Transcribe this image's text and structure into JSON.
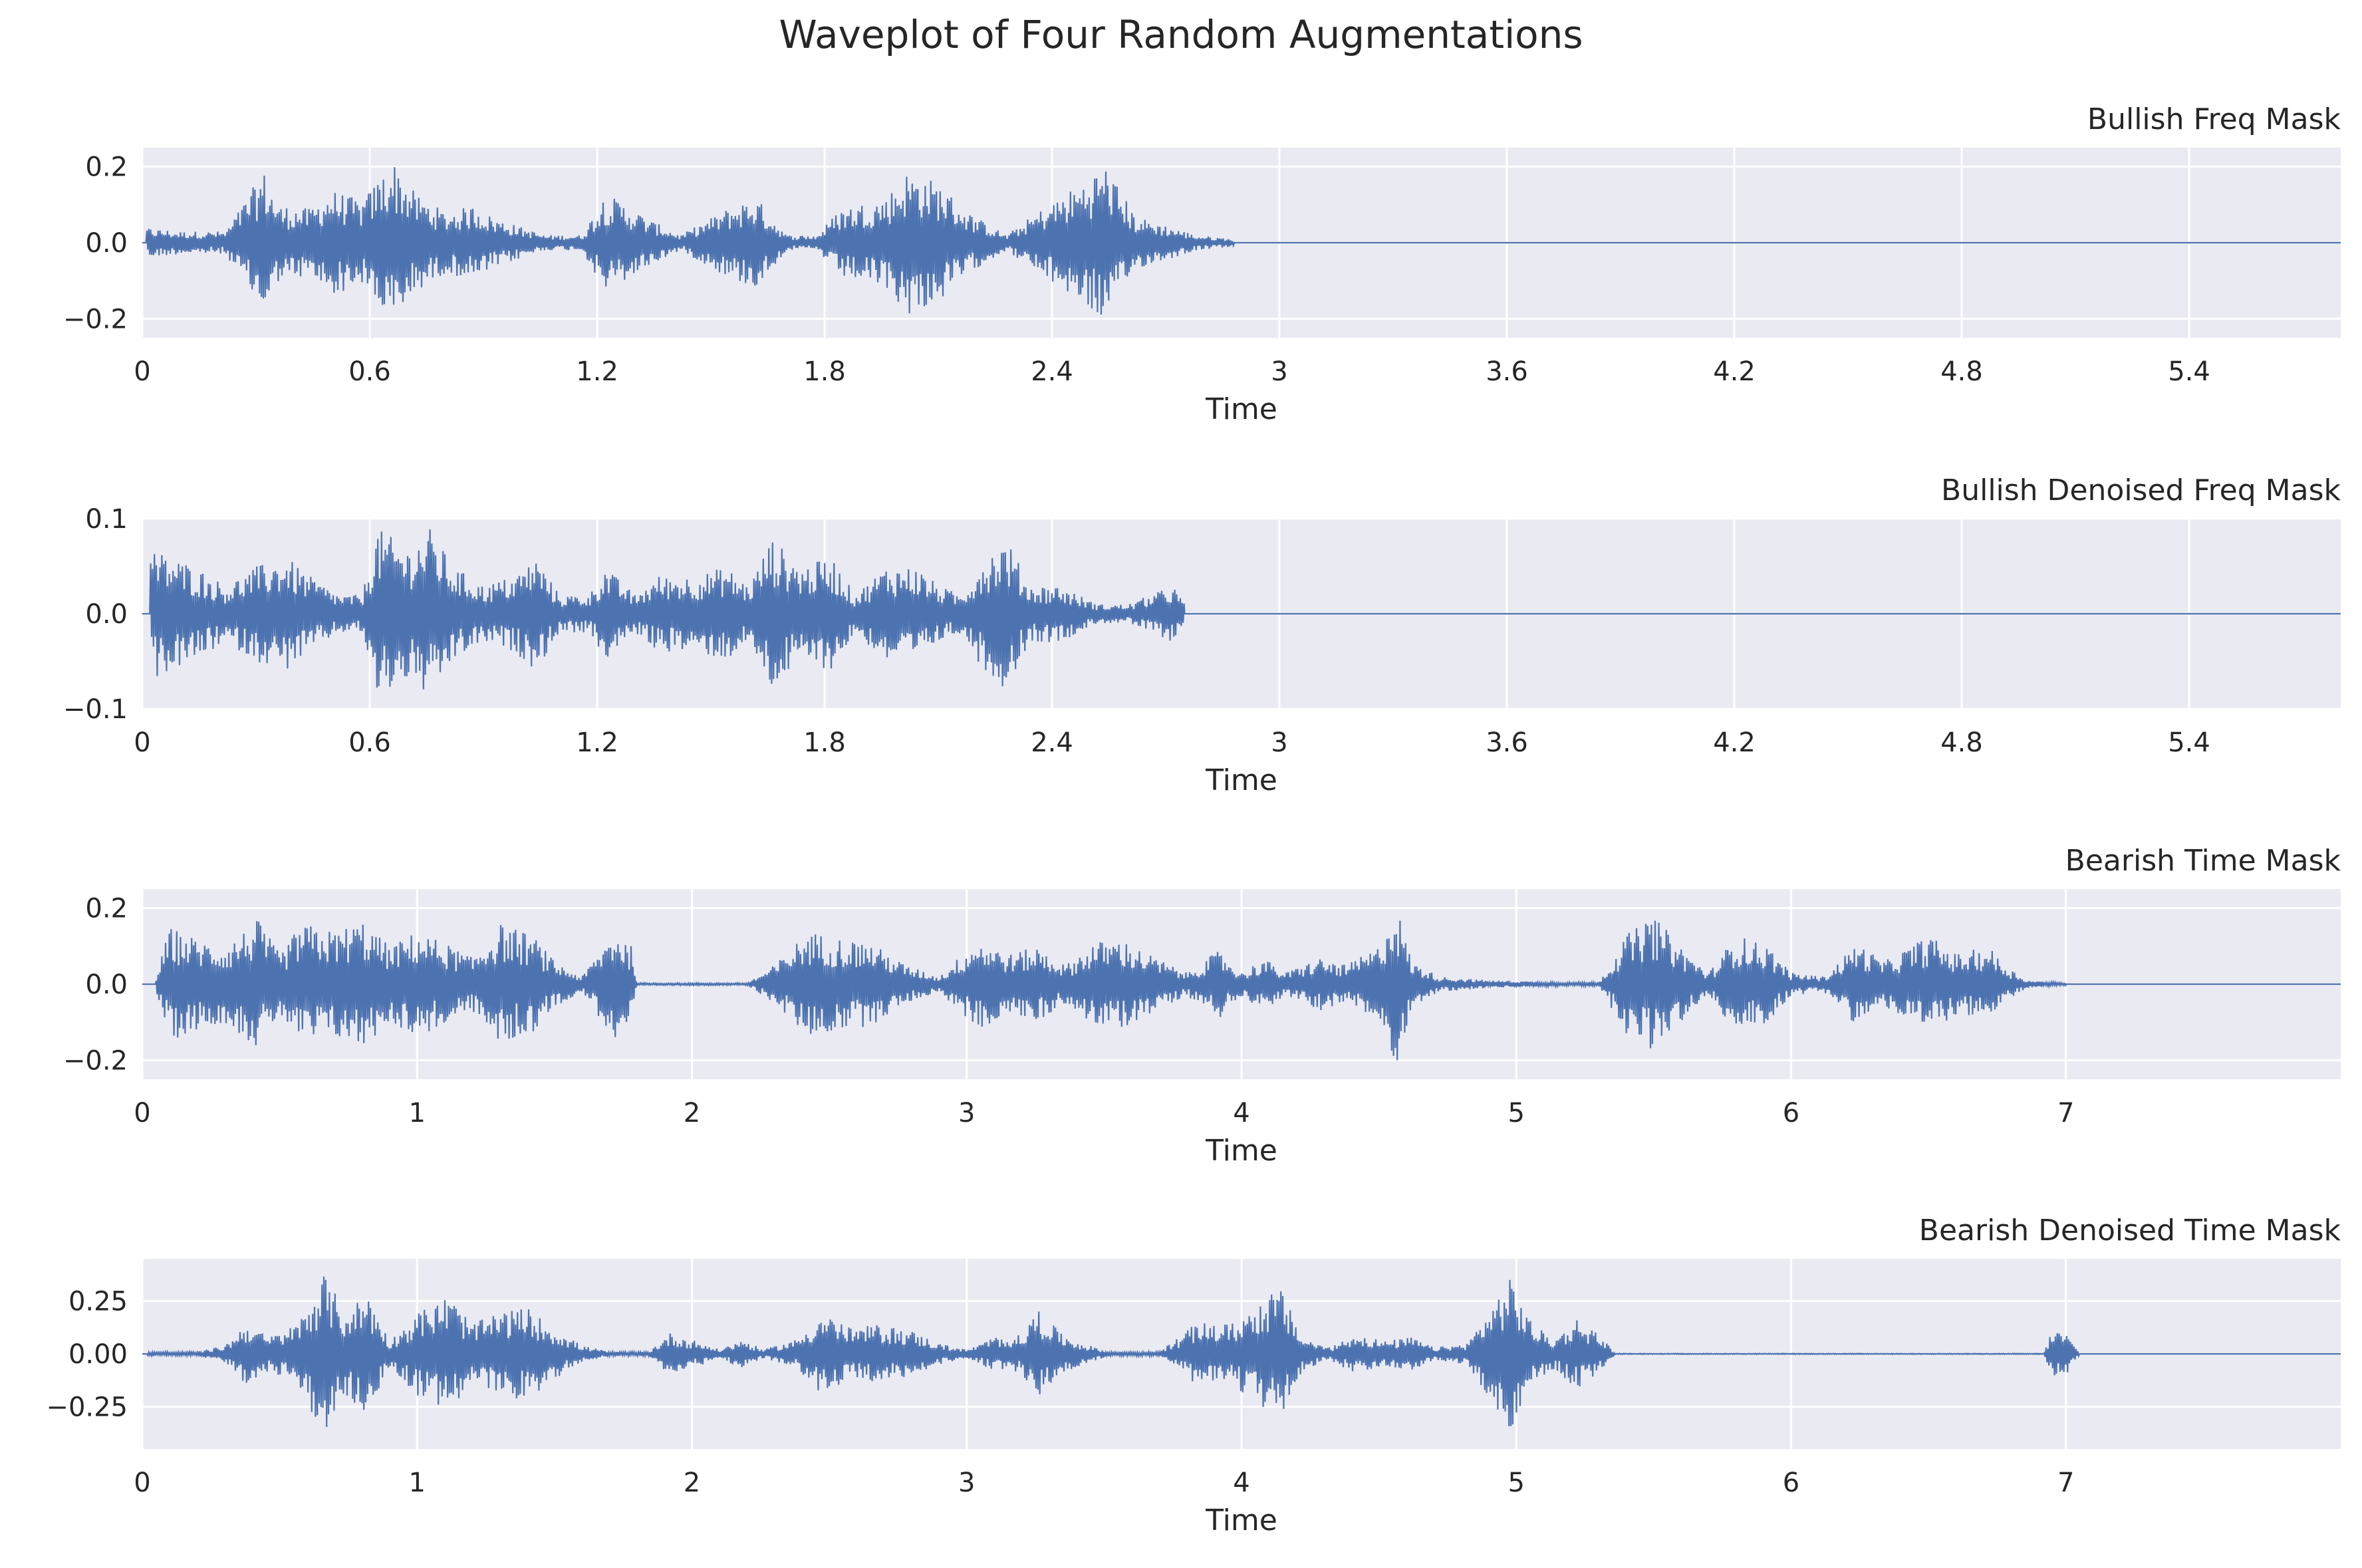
{
  "figure": {
    "title": "Waveplot of Four Random Augmentations"
  },
  "colors": {
    "wave": "#4c72b0",
    "panel_bg": "#eaeaf2",
    "grid": "#ffffff",
    "text": "#262626"
  },
  "chart_data": [
    {
      "type": "line",
      "title": "Bullish Freq Mask",
      "xlabel": "Time",
      "ylabel": "",
      "xlim": [
        0,
        5.8
      ],
      "ylim": [
        -0.25,
        0.25
      ],
      "x_ticks": [
        0,
        0.6,
        1.2,
        1.8,
        2.4,
        3,
        3.6,
        4.2,
        4.8,
        5.4
      ],
      "x_tick_labels": [
        "0",
        "0.6",
        "1.2",
        "1.8",
        "2.4",
        "3",
        "3.6",
        "4.2",
        "4.8",
        "5.4"
      ],
      "y_ticks": [
        -0.2,
        0.0,
        0.2
      ],
      "y_tick_labels": [
        "−0.2",
        "0.0",
        "0.2"
      ],
      "grid": true,
      "signal_end": 2.9,
      "envelope": [
        [
          0.01,
          0.04
        ],
        [
          0.1,
          0.03
        ],
        [
          0.22,
          0.03
        ],
        [
          0.32,
          0.19
        ],
        [
          0.36,
          0.1
        ],
        [
          0.44,
          0.09
        ],
        [
          0.5,
          0.14
        ],
        [
          0.58,
          0.11
        ],
        [
          0.66,
          0.22
        ],
        [
          0.72,
          0.13
        ],
        [
          0.8,
          0.08
        ],
        [
          0.88,
          0.1
        ],
        [
          0.92,
          0.07
        ],
        [
          1.06,
          0.02
        ],
        [
          1.16,
          0.02
        ],
        [
          1.22,
          0.13
        ],
        [
          1.28,
          0.1
        ],
        [
          1.34,
          0.06
        ],
        [
          1.42,
          0.02
        ],
        [
          1.56,
          0.1
        ],
        [
          1.62,
          0.12
        ],
        [
          1.7,
          0.02
        ],
        [
          1.78,
          0.02
        ],
        [
          1.84,
          0.09
        ],
        [
          1.96,
          0.12
        ],
        [
          2.02,
          0.19
        ],
        [
          2.1,
          0.16
        ],
        [
          2.18,
          0.08
        ],
        [
          2.28,
          0.02
        ],
        [
          2.36,
          0.08
        ],
        [
          2.48,
          0.16
        ],
        [
          2.54,
          0.21
        ],
        [
          2.62,
          0.07
        ],
        [
          2.72,
          0.04
        ],
        [
          2.78,
          0.02
        ],
        [
          2.88,
          0.01
        ]
      ],
      "x_values_note": ""
    },
    {
      "type": "line",
      "title": "Bullish Denoised Freq Mask",
      "xlabel": "Time",
      "ylabel": "",
      "xlim": [
        0,
        5.8
      ],
      "ylim": [
        -0.1,
        0.1
      ],
      "x_ticks": [
        0,
        0.6,
        1.2,
        1.8,
        2.4,
        3,
        3.6,
        4.2,
        4.8,
        5.4
      ],
      "x_tick_labels": [
        "0",
        "0.6",
        "1.2",
        "1.8",
        "2.4",
        "3",
        "3.6",
        "4.2",
        "4.8",
        "5.4"
      ],
      "y_ticks": [
        -0.1,
        0.0,
        0.1
      ],
      "y_tick_labels": [
        "−0.1",
        "0.0",
        "0.1"
      ],
      "grid": true,
      "signal_end": 2.75,
      "envelope": [
        [
          0.02,
          0.07
        ],
        [
          0.08,
          0.06
        ],
        [
          0.14,
          0.05
        ],
        [
          0.22,
          0.03
        ],
        [
          0.3,
          0.05
        ],
        [
          0.38,
          0.06
        ],
        [
          0.44,
          0.04
        ],
        [
          0.52,
          0.02
        ],
        [
          0.58,
          0.02
        ],
        [
          0.62,
          0.09
        ],
        [
          0.7,
          0.07
        ],
        [
          0.76,
          0.09
        ],
        [
          0.82,
          0.05
        ],
        [
          0.9,
          0.03
        ],
        [
          0.98,
          0.04
        ],
        [
          1.04,
          0.06
        ],
        [
          1.1,
          0.02
        ],
        [
          1.18,
          0.02
        ],
        [
          1.22,
          0.05
        ],
        [
          1.3,
          0.02
        ],
        [
          1.36,
          0.04
        ],
        [
          1.46,
          0.04
        ],
        [
          1.54,
          0.05
        ],
        [
          1.6,
          0.03
        ],
        [
          1.66,
          0.08
        ],
        [
          1.74,
          0.05
        ],
        [
          1.82,
          0.06
        ],
        [
          1.88,
          0.02
        ],
        [
          1.96,
          0.05
        ],
        [
          2.04,
          0.05
        ],
        [
          2.1,
          0.03
        ],
        [
          2.16,
          0.02
        ],
        [
          2.22,
          0.06
        ],
        [
          2.28,
          0.08
        ],
        [
          2.34,
          0.03
        ],
        [
          2.42,
          0.03
        ],
        [
          2.52,
          0.01
        ],
        [
          2.6,
          0.01
        ],
        [
          2.72,
          0.03
        ],
        [
          2.75,
          0.01
        ]
      ]
    },
    {
      "type": "line",
      "title": "Bearish Time Mask",
      "xlabel": "Time",
      "ylabel": "",
      "xlim": [
        0,
        8.0
      ],
      "ylim": [
        -0.25,
        0.25
      ],
      "x_ticks": [
        0,
        1,
        2,
        3,
        4,
        5,
        6,
        7
      ],
      "x_tick_labels": [
        "0",
        "1",
        "2",
        "3",
        "4",
        "5",
        "6",
        "7"
      ],
      "y_ticks": [
        -0.2,
        0.0,
        0.2
      ],
      "y_tick_labels": [
        "−0.2",
        "0.0",
        "0.2"
      ],
      "grid": true,
      "signal_end": 7.0,
      "envelope": [
        [
          0.05,
          0.02
        ],
        [
          0.1,
          0.15
        ],
        [
          0.2,
          0.12
        ],
        [
          0.3,
          0.1
        ],
        [
          0.42,
          0.17
        ],
        [
          0.5,
          0.08
        ],
        [
          0.58,
          0.16
        ],
        [
          0.7,
          0.14
        ],
        [
          0.8,
          0.17
        ],
        [
          0.9,
          0.1
        ],
        [
          1.0,
          0.14
        ],
        [
          1.1,
          0.11
        ],
        [
          1.2,
          0.07
        ],
        [
          1.3,
          0.16
        ],
        [
          1.42,
          0.13
        ],
        [
          1.5,
          0.06
        ],
        [
          1.6,
          0.02
        ],
        [
          1.72,
          0.15
        ],
        [
          1.78,
          0.1
        ],
        [
          1.8,
          0.003
        ],
        [
          2.2,
          0.003
        ],
        [
          2.3,
          0.05
        ],
        [
          2.42,
          0.14
        ],
        [
          2.55,
          0.12
        ],
        [
          2.65,
          0.11
        ],
        [
          2.78,
          0.05
        ],
        [
          2.9,
          0.02
        ],
        [
          3.04,
          0.12
        ],
        [
          3.16,
          0.08
        ],
        [
          3.26,
          0.1
        ],
        [
          3.36,
          0.05
        ],
        [
          3.46,
          0.11
        ],
        [
          3.56,
          0.12
        ],
        [
          3.66,
          0.08
        ],
        [
          3.8,
          0.03
        ],
        [
          3.92,
          0.09
        ],
        [
          4.0,
          0.03
        ],
        [
          4.08,
          0.07
        ],
        [
          4.16,
          0.03
        ],
        [
          4.28,
          0.07
        ],
        [
          4.38,
          0.05
        ],
        [
          4.5,
          0.1
        ],
        [
          4.56,
          0.22
        ],
        [
          4.62,
          0.06
        ],
        [
          4.72,
          0.02
        ],
        [
          4.9,
          0.01
        ],
        [
          5.2,
          0.005
        ],
        [
          5.3,
          0.006
        ],
        [
          5.4,
          0.13
        ],
        [
          5.5,
          0.18
        ],
        [
          5.6,
          0.1
        ],
        [
          5.7,
          0.03
        ],
        [
          5.8,
          0.13
        ],
        [
          5.92,
          0.1
        ],
        [
          6.0,
          0.03
        ],
        [
          6.12,
          0.02
        ],
        [
          6.24,
          0.11
        ],
        [
          6.34,
          0.06
        ],
        [
          6.5,
          0.13
        ],
        [
          6.6,
          0.08
        ],
        [
          6.72,
          0.1
        ],
        [
          6.78,
          0.05
        ],
        [
          6.86,
          0.01
        ],
        [
          7.0,
          0.003
        ]
      ]
    },
    {
      "type": "line",
      "title": "Bearish Denoised Time Mask",
      "xlabel": "Time",
      "ylabel": "",
      "xlim": [
        0,
        8.0
      ],
      "ylim": [
        -0.45,
        0.45
      ],
      "x_ticks": [
        0,
        1,
        2,
        3,
        4,
        5,
        6,
        7
      ],
      "x_tick_labels": [
        "0",
        "1",
        "2",
        "3",
        "4",
        "5",
        "6",
        "7"
      ],
      "y_ticks": [
        -0.25,
        0.0,
        0.25
      ],
      "y_tick_labels": [
        "−0.25",
        "0.00",
        "0.25"
      ],
      "grid": true,
      "signal_end": 7.05,
      "envelope": [
        [
          0.02,
          0.01
        ],
        [
          0.2,
          0.01
        ],
        [
          0.3,
          0.04
        ],
        [
          0.38,
          0.15
        ],
        [
          0.46,
          0.08
        ],
        [
          0.56,
          0.14
        ],
        [
          0.66,
          0.38
        ],
        [
          0.74,
          0.2
        ],
        [
          0.82,
          0.3
        ],
        [
          0.9,
          0.06
        ],
        [
          1.0,
          0.2
        ],
        [
          1.12,
          0.28
        ],
        [
          1.2,
          0.14
        ],
        [
          1.3,
          0.2
        ],
        [
          1.4,
          0.22
        ],
        [
          1.5,
          0.12
        ],
        [
          1.6,
          0.04
        ],
        [
          1.7,
          0.01
        ],
        [
          1.84,
          0.01
        ],
        [
          1.92,
          0.1
        ],
        [
          2.02,
          0.06
        ],
        [
          2.1,
          0.02
        ],
        [
          2.18,
          0.07
        ],
        [
          2.26,
          0.02
        ],
        [
          2.38,
          0.07
        ],
        [
          2.48,
          0.2
        ],
        [
          2.58,
          0.12
        ],
        [
          2.68,
          0.14
        ],
        [
          2.8,
          0.11
        ],
        [
          2.9,
          0.05
        ],
        [
          3.0,
          0.02
        ],
        [
          3.1,
          0.08
        ],
        [
          3.2,
          0.09
        ],
        [
          3.26,
          0.22
        ],
        [
          3.34,
          0.1
        ],
        [
          3.42,
          0.05
        ],
        [
          3.52,
          0.01
        ],
        [
          3.7,
          0.01
        ],
        [
          3.84,
          0.15
        ],
        [
          3.96,
          0.14
        ],
        [
          4.08,
          0.26
        ],
        [
          4.14,
          0.32
        ],
        [
          4.22,
          0.08
        ],
        [
          4.32,
          0.03
        ],
        [
          4.42,
          0.1
        ],
        [
          4.52,
          0.06
        ],
        [
          4.62,
          0.08
        ],
        [
          4.7,
          0.03
        ],
        [
          4.82,
          0.05
        ],
        [
          4.92,
          0.25
        ],
        [
          4.98,
          0.36
        ],
        [
          5.06,
          0.14
        ],
        [
          5.14,
          0.07
        ],
        [
          5.22,
          0.17
        ],
        [
          5.3,
          0.1
        ],
        [
          5.36,
          0.002
        ],
        [
          6.92,
          0.002
        ],
        [
          6.95,
          0.12
        ],
        [
          7.0,
          0.1
        ],
        [
          7.05,
          0.003
        ]
      ]
    }
  ]
}
